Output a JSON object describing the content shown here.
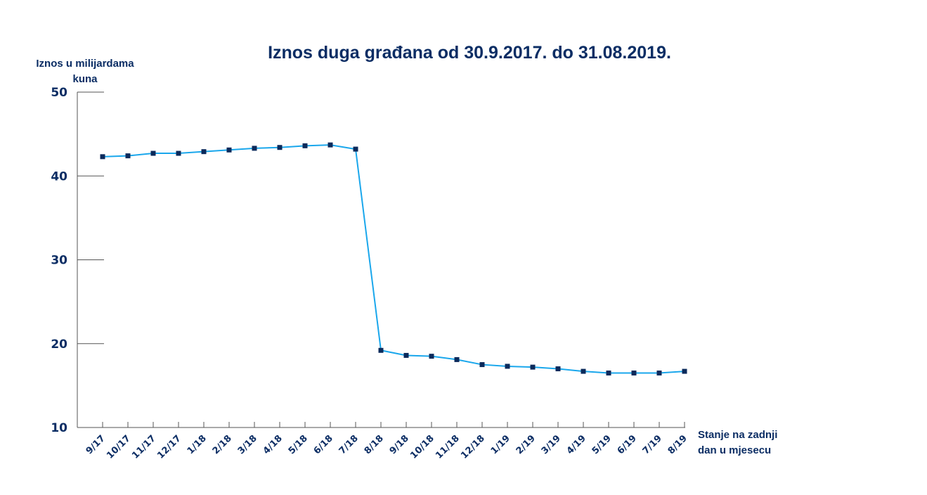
{
  "chart_data": {
    "type": "line",
    "title": "Iznos duga građana od 30.9.2017. do 31.08.2019.",
    "ylabel": [
      "Iznos u milijardama",
      "kuna"
    ],
    "xlabel": [
      "Stanje na zadnji",
      "dan u mjesecu"
    ],
    "ylim": [
      10,
      50
    ],
    "yticks": [
      10,
      20,
      30,
      40,
      50
    ],
    "grid": false,
    "categories": [
      "9/17",
      "10/17",
      "11/17",
      "12/17",
      "1/18",
      "2/18",
      "3/18",
      "4/18",
      "5/18",
      "6/18",
      "7/18",
      "8/18",
      "9/18",
      "10/18",
      "11/18",
      "12/18",
      "1/19",
      "2/19",
      "3/19",
      "4/19",
      "5/19",
      "6/19",
      "7/19",
      "8/19"
    ],
    "values": [
      42.3,
      42.4,
      42.7,
      42.7,
      42.9,
      43.1,
      43.3,
      43.4,
      43.6,
      43.7,
      43.2,
      19.2,
      18.6,
      18.5,
      18.1,
      17.5,
      17.3,
      17.2,
      17.0,
      16.7,
      16.5,
      16.5,
      16.5,
      16.7
    ],
    "colors": {
      "line": "#1aa7ec",
      "marker": "#0b2a5b",
      "text": "#0b2d64",
      "axis": "#555555"
    }
  }
}
